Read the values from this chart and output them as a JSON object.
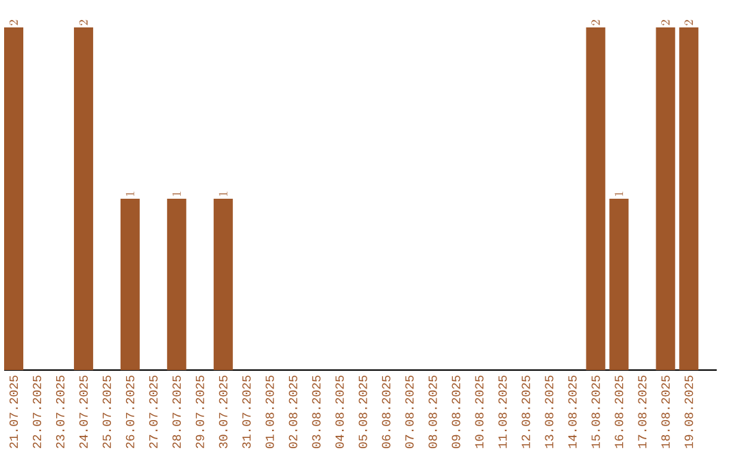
{
  "chart_data": {
    "type": "bar",
    "color": "#a0582a",
    "data_labels": true,
    "categories": [
      "21.07.2025",
      "22.07.2025",
      "23.07.2025",
      "24.07.2025",
      "25.07.2025",
      "26.07.2025",
      "27.07.2025",
      "28.07.2025",
      "29.07.2025",
      "30.07.2025",
      "31.07.2025",
      "01.08.2025",
      "02.08.2025",
      "03.08.2025",
      "04.08.2025",
      "05.08.2025",
      "06.08.2025",
      "07.08.2025",
      "08.08.2025",
      "09.08.2025",
      "10.08.2025",
      "11.08.2025",
      "12.08.2025",
      "13.08.2025",
      "14.08.2025",
      "15.08.2025",
      "16.08.2025",
      "17.08.2025",
      "18.08.2025",
      "19.08.2025"
    ],
    "values": [
      2,
      null,
      null,
      2,
      null,
      1,
      null,
      1,
      null,
      1,
      null,
      null,
      null,
      null,
      null,
      null,
      null,
      null,
      null,
      null,
      null,
      null,
      null,
      null,
      null,
      2,
      1,
      null,
      2,
      2
    ]
  }
}
